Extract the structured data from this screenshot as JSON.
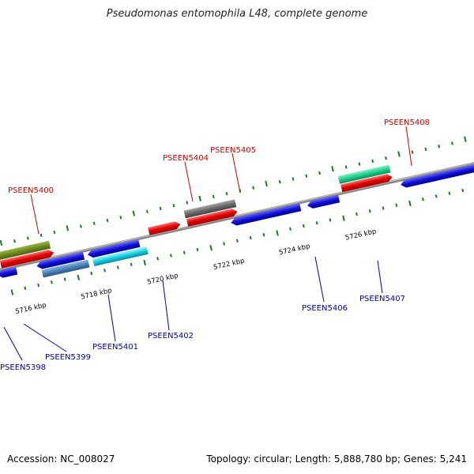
{
  "title": "Pseudomonas entomophila L48, complete genome",
  "footer": {
    "accession": "Accession: NC_008027",
    "summary": "Topology: circular; Length: 5,888,780 bp; Genes: 5,241"
  },
  "colors": {
    "backbone": "#8a8a8a",
    "tick": "#1f7a1f",
    "upper_label": "#cc0000",
    "lower_label": "#0000aa"
  },
  "scale_labels": [
    "5716 kbp",
    "5718 kbp",
    "5720 kbp",
    "5722 kbp",
    "5724 kbp",
    "5726 kbp"
  ],
  "upper_gene_labels": [
    "PSEEN5400",
    "PSEEN5404",
    "PSEEN5405",
    "PSEEN5408"
  ],
  "lower_gene_labels": [
    "PSEEN5398",
    "PSEEN5399",
    "PSEEN5401",
    "PSEEN5402",
    "PSEEN5406",
    "PSEEN5407"
  ],
  "feature_colors": [
    "#d80000",
    "#6e8a1e",
    "#6a6a6a",
    "#1fd08a",
    "#1111d8",
    "#4a82b8",
    "#18d0e0"
  ]
}
